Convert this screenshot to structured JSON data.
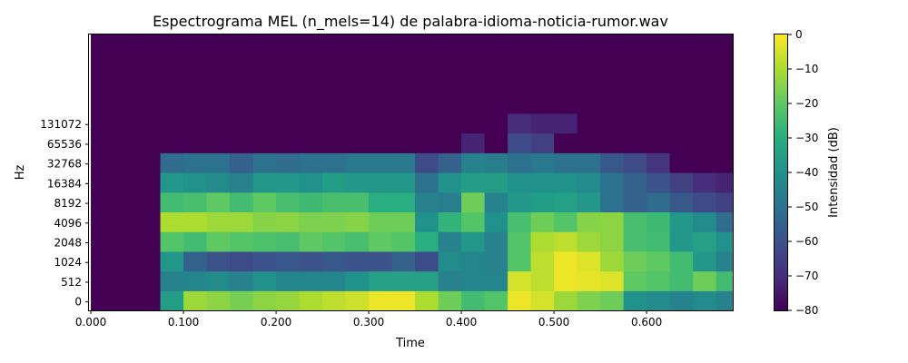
{
  "chart_data": {
    "type": "heatmap",
    "title": "Espectrograma MEL (n_mels=14) de palabra-idioma-noticia-rumor.wav",
    "xlabel": "Time",
    "ylabel": "Hz",
    "x_ticks": [
      "0.000",
      "0.100",
      "0.200",
      "0.300",
      "0.400",
      "0.500",
      "0.600"
    ],
    "y_ticks": [
      "0",
      "512",
      "1024",
      "2048",
      "4096",
      "8192",
      "16384",
      "32768",
      "65536",
      "131072"
    ],
    "xlim": [
      -0.002,
      0.693
    ],
    "colorbar": {
      "label": "Intensidad (dB)",
      "ticks": [
        "0",
        "−10",
        "−20",
        "−30",
        "−40",
        "−50",
        "−60",
        "−70",
        "−80"
      ],
      "range": [
        -80,
        0
      ],
      "colormap": "viridis"
    },
    "n_mels": 14,
    "time_bins": [
      0.0,
      0.05,
      0.075,
      0.1,
      0.125,
      0.15,
      0.175,
      0.2,
      0.225,
      0.25,
      0.275,
      0.3,
      0.325,
      0.35,
      0.375,
      0.4,
      0.425,
      0.45,
      0.475,
      0.5,
      0.525,
      0.55,
      0.575,
      0.6,
      0.625,
      0.65,
      0.675,
      0.693
    ],
    "mel_bands_db": [
      [
        -80,
        -80,
        -36,
        -12,
        -14,
        -17,
        -14,
        -13,
        -10,
        -8,
        -6,
        -2,
        -2,
        -10,
        -18,
        -25,
        -22,
        -2,
        -5,
        -12,
        -16,
        -18,
        -40,
        -42,
        -45,
        -42,
        -45
      ],
      [
        -80,
        -80,
        -45,
        -44,
        -42,
        -45,
        -40,
        -44,
        -44,
        -44,
        -40,
        -35,
        -35,
        -35,
        -45,
        -44,
        -44,
        -5,
        -8,
        -2,
        -3,
        -4,
        -20,
        -22,
        -25,
        -18,
        -25
      ],
      [
        -80,
        -80,
        -38,
        -55,
        -60,
        -62,
        -60,
        -58,
        -60,
        -58,
        -60,
        -60,
        -55,
        -62,
        -42,
        -44,
        -45,
        -22,
        -8,
        -2,
        -4,
        -12,
        -18,
        -20,
        -25,
        -38,
        -45
      ],
      [
        -80,
        -80,
        -22,
        -25,
        -20,
        -22,
        -23,
        -24,
        -20,
        -22,
        -24,
        -20,
        -22,
        -30,
        -45,
        -38,
        -45,
        -22,
        -10,
        -8,
        -12,
        -14,
        -24,
        -25,
        -38,
        -35,
        -40
      ],
      [
        -80,
        -80,
        -10,
        -10,
        -12,
        -12,
        -15,
        -14,
        -16,
        -16,
        -15,
        -18,
        -18,
        -40,
        -28,
        -22,
        -40,
        -24,
        -18,
        -22,
        -15,
        -14,
        -24,
        -26,
        -38,
        -42,
        -52
      ],
      [
        -80,
        -80,
        -25,
        -24,
        -20,
        -25,
        -20,
        -24,
        -26,
        -24,
        -24,
        -30,
        -30,
        -45,
        -46,
        -18,
        -45,
        -38,
        -36,
        -35,
        -38,
        -50,
        -55,
        -52,
        -58,
        -62,
        -65
      ],
      [
        -80,
        -80,
        -38,
        -40,
        -42,
        -45,
        -38,
        -38,
        -40,
        -36,
        -38,
        -38,
        -38,
        -50,
        -40,
        -36,
        -36,
        -40,
        -40,
        -40,
        -42,
        -50,
        -55,
        -60,
        -65,
        -70,
        -72
      ],
      [
        -80,
        -80,
        -52,
        -50,
        -50,
        -55,
        -50,
        -52,
        -50,
        -50,
        -48,
        -48,
        -48,
        -62,
        -55,
        -45,
        -46,
        -50,
        -48,
        -50,
        -50,
        -58,
        -62,
        -68,
        -80,
        -80,
        -80
      ],
      [
        -80,
        -80,
        -80,
        -80,
        -80,
        -80,
        -80,
        -80,
        -80,
        -80,
        -80,
        -80,
        -80,
        -80,
        -80,
        -72,
        -80,
        -62,
        -65,
        -80,
        -80,
        -80,
        -80,
        -80,
        -80,
        -80,
        -80
      ],
      [
        -80,
        -80,
        -80,
        -80,
        -80,
        -80,
        -80,
        -80,
        -80,
        -80,
        -80,
        -80,
        -80,
        -80,
        -80,
        -80,
        -80,
        -70,
        -72,
        -72,
        -80,
        -80,
        -80,
        -80,
        -80,
        -80,
        -80
      ],
      [
        -80,
        -80,
        -80,
        -80,
        -80,
        -80,
        -80,
        -80,
        -80,
        -80,
        -80,
        -80,
        -80,
        -80,
        -80,
        -80,
        -80,
        -80,
        -80,
        -80,
        -80,
        -80,
        -80,
        -80,
        -80,
        -80,
        -80
      ],
      [
        -80,
        -80,
        -80,
        -80,
        -80,
        -80,
        -80,
        -80,
        -80,
        -80,
        -80,
        -80,
        -80,
        -80,
        -80,
        -80,
        -80,
        -80,
        -80,
        -80,
        -80,
        -80,
        -80,
        -80,
        -80,
        -80,
        -80
      ],
      [
        -80,
        -80,
        -80,
        -80,
        -80,
        -80,
        -80,
        -80,
        -80,
        -80,
        -80,
        -80,
        -80,
        -80,
        -80,
        -80,
        -80,
        -80,
        -80,
        -80,
        -80,
        -80,
        -80,
        -80,
        -80,
        -80,
        -80
      ],
      [
        -80,
        -80,
        -80,
        -80,
        -80,
        -80,
        -80,
        -80,
        -80,
        -80,
        -80,
        -80,
        -80,
        -80,
        -80,
        -80,
        -80,
        -80,
        -80,
        -80,
        -80,
        -80,
        -80,
        -80,
        -80,
        -80,
        -80
      ]
    ]
  }
}
